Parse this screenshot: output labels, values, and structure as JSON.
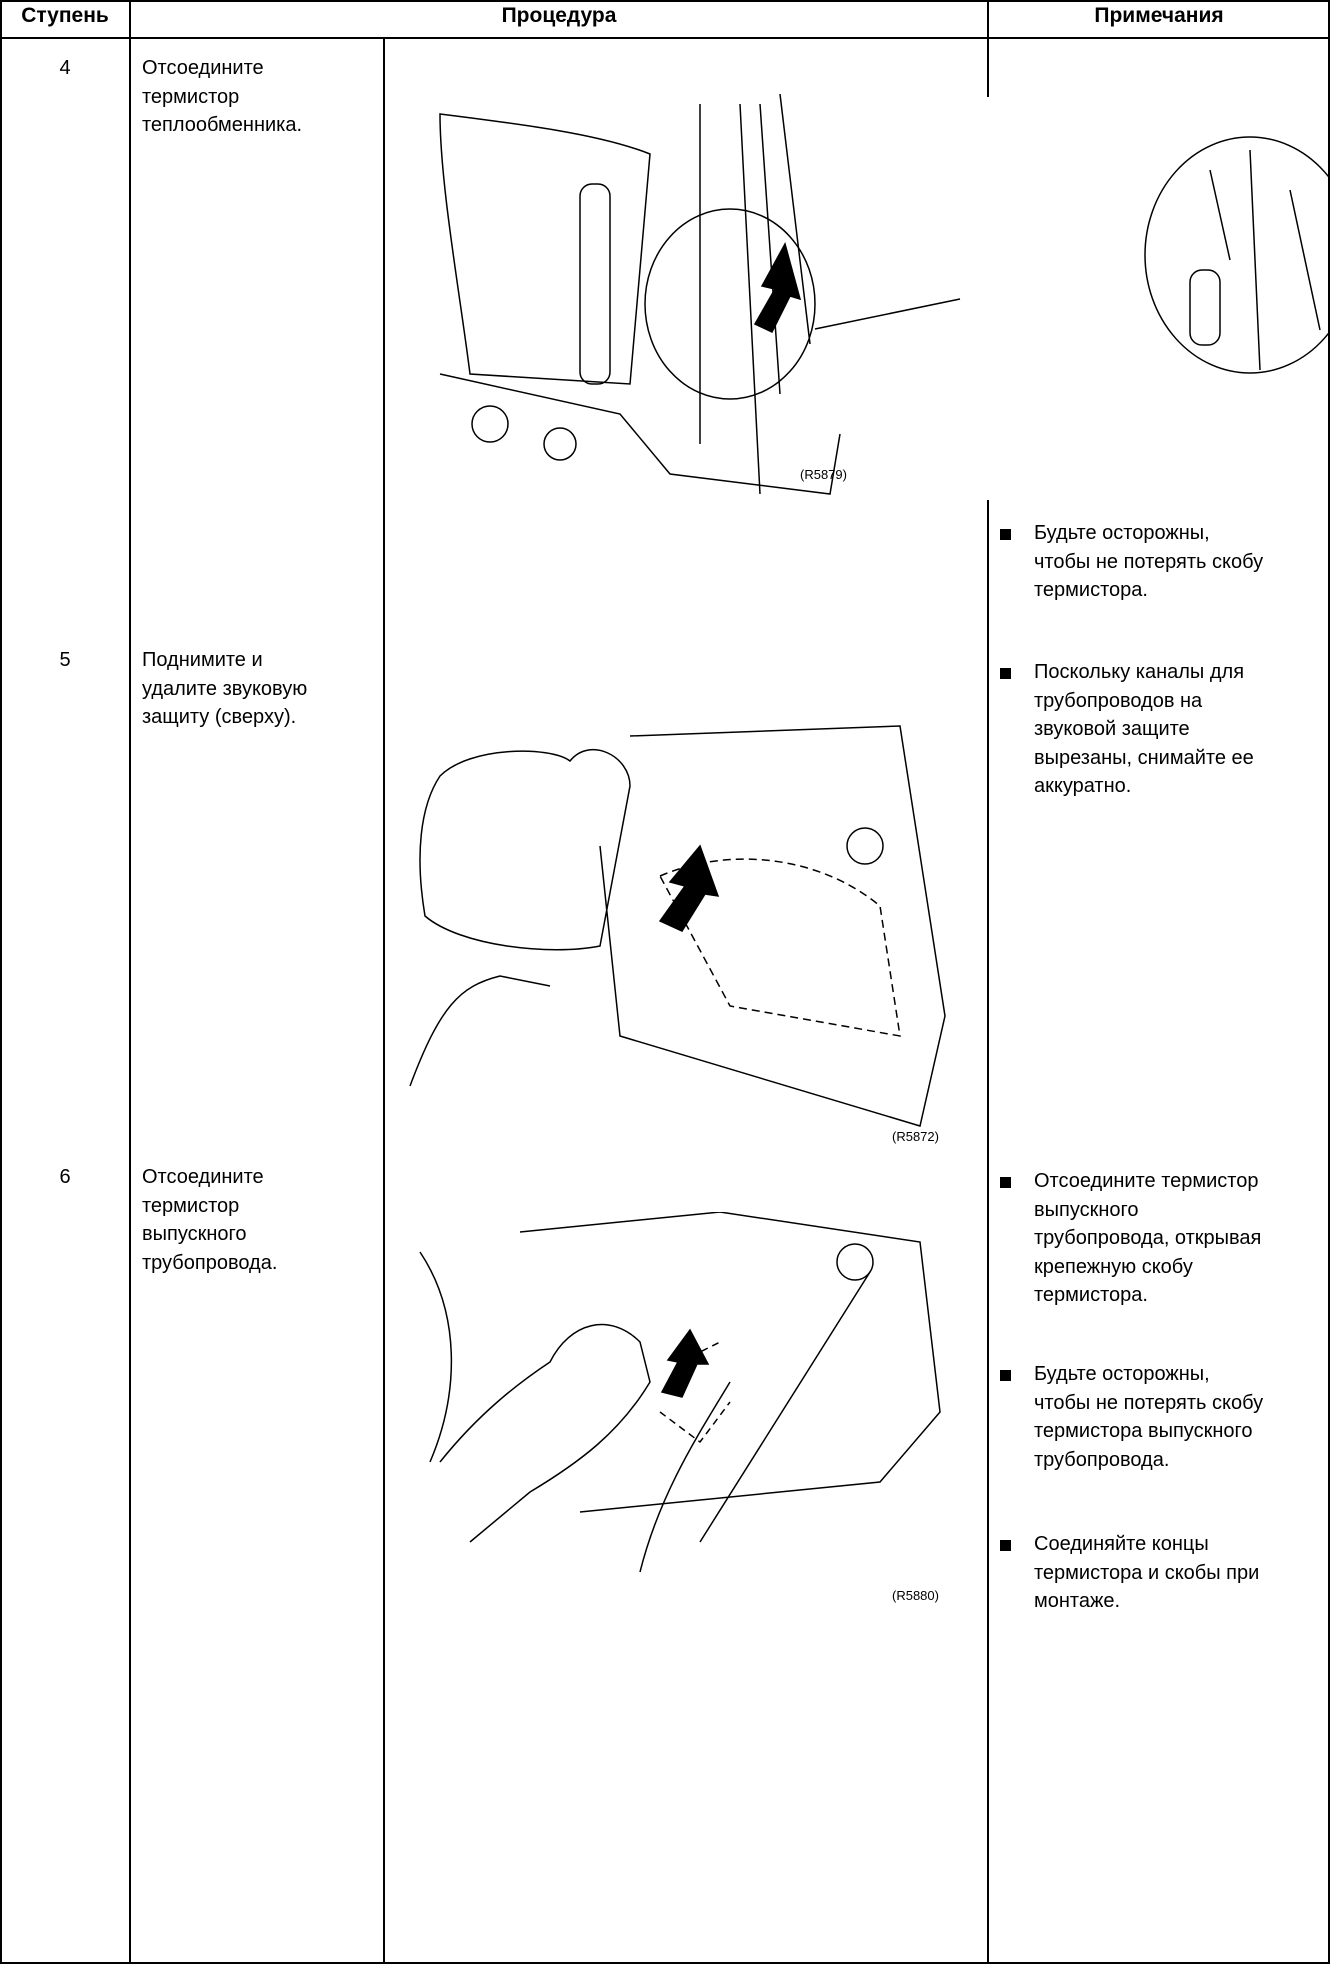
{
  "table": {
    "headers": [
      "Ступень",
      "Процедура",
      "Примечания"
    ],
    "rows": [
      {
        "step": "4",
        "text": [
          "Отсоедините",
          "термистор",
          "теплообменника."
        ],
        "figure": "(R5879)",
        "notes": [
          [
            "Будьте осторожны,",
            "чтобы не потерять скобу",
            "термистора."
          ]
        ]
      },
      {
        "step": "5",
        "text": [
          "Поднимите и",
          "удалите звуковую",
          "защиту (сверху)."
        ],
        "figure": "(R5872)",
        "notes": [
          [
            "Поскольку каналы для",
            "трубопроводов на",
            "звуковой защите",
            "вырезаны, снимайте ее",
            "аккуратно."
          ]
        ]
      },
      {
        "step": "6",
        "text": [
          "Отсоедините",
          "термистор",
          "выпускного",
          "трубопровода."
        ],
        "figure": "(R5880)",
        "notes": [
          [
            "Отсоедините термистор",
            "выпускного",
            "трубопровода, открывая",
            "крепежную скобу",
            "термистора."
          ],
          [
            "Будьте осторожны,",
            "чтобы не потерять скобу",
            "термистора выпускного",
            "трубопровода."
          ],
          [
            "Соединяйте концы",
            "термистора и скобы при",
            "монтаже."
          ]
        ]
      }
    ]
  }
}
